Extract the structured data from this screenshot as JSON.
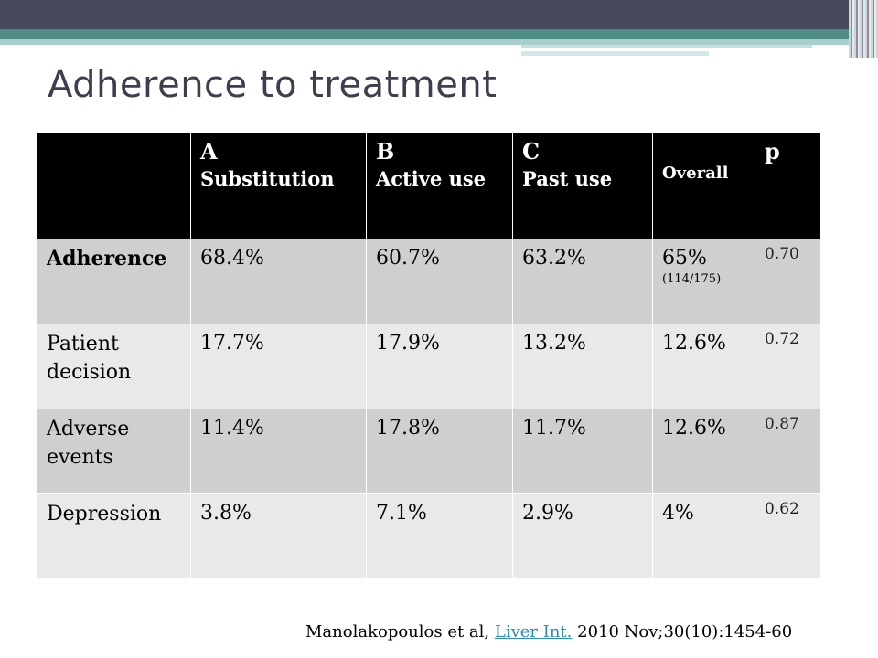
{
  "slide": {
    "title": "Adherence to treatment"
  },
  "table": {
    "headers": {
      "col_a_letter": "A",
      "col_a_name": "Substitution",
      "col_b_letter": "B",
      "col_b_name": "Active use",
      "col_c_letter": "C",
      "col_c_name": "Past use",
      "overall": "Overall",
      "p": "p"
    },
    "rows": [
      {
        "label": "Adherence",
        "a": "68.4%",
        "b": "60.7%",
        "c": "63.2%",
        "overall": "65%",
        "overall_note": "(114/175)",
        "p": "0.70"
      },
      {
        "label": "Patient decision",
        "a": "17.7%",
        "b": "17.9%",
        "c": "13.2%",
        "overall": "12.6%",
        "overall_note": "",
        "p": "0.72"
      },
      {
        "label": "Adverse events",
        "a": "11.4%",
        "b": "17.8%",
        "c": "11.7%",
        "overall": "12.6%",
        "overall_note": "",
        "p": "0.87"
      },
      {
        "label": "Depression",
        "a": "3.8%",
        "b": "7.1%",
        "c": "2.9%",
        "overall": "4%",
        "overall_note": "",
        "p": "0.62"
      }
    ]
  },
  "citation": {
    "authors": "Manolakopoulos et al, ",
    "journal_link": "Liver Int.",
    "details": " 2010 Nov;30(10):1454-60"
  },
  "colors": {
    "header_bg": "#000000",
    "row_dark": "#cfcfcf",
    "row_light": "#e9e9e9",
    "link": "#2e8bb0",
    "title": "#3d3f4f"
  }
}
